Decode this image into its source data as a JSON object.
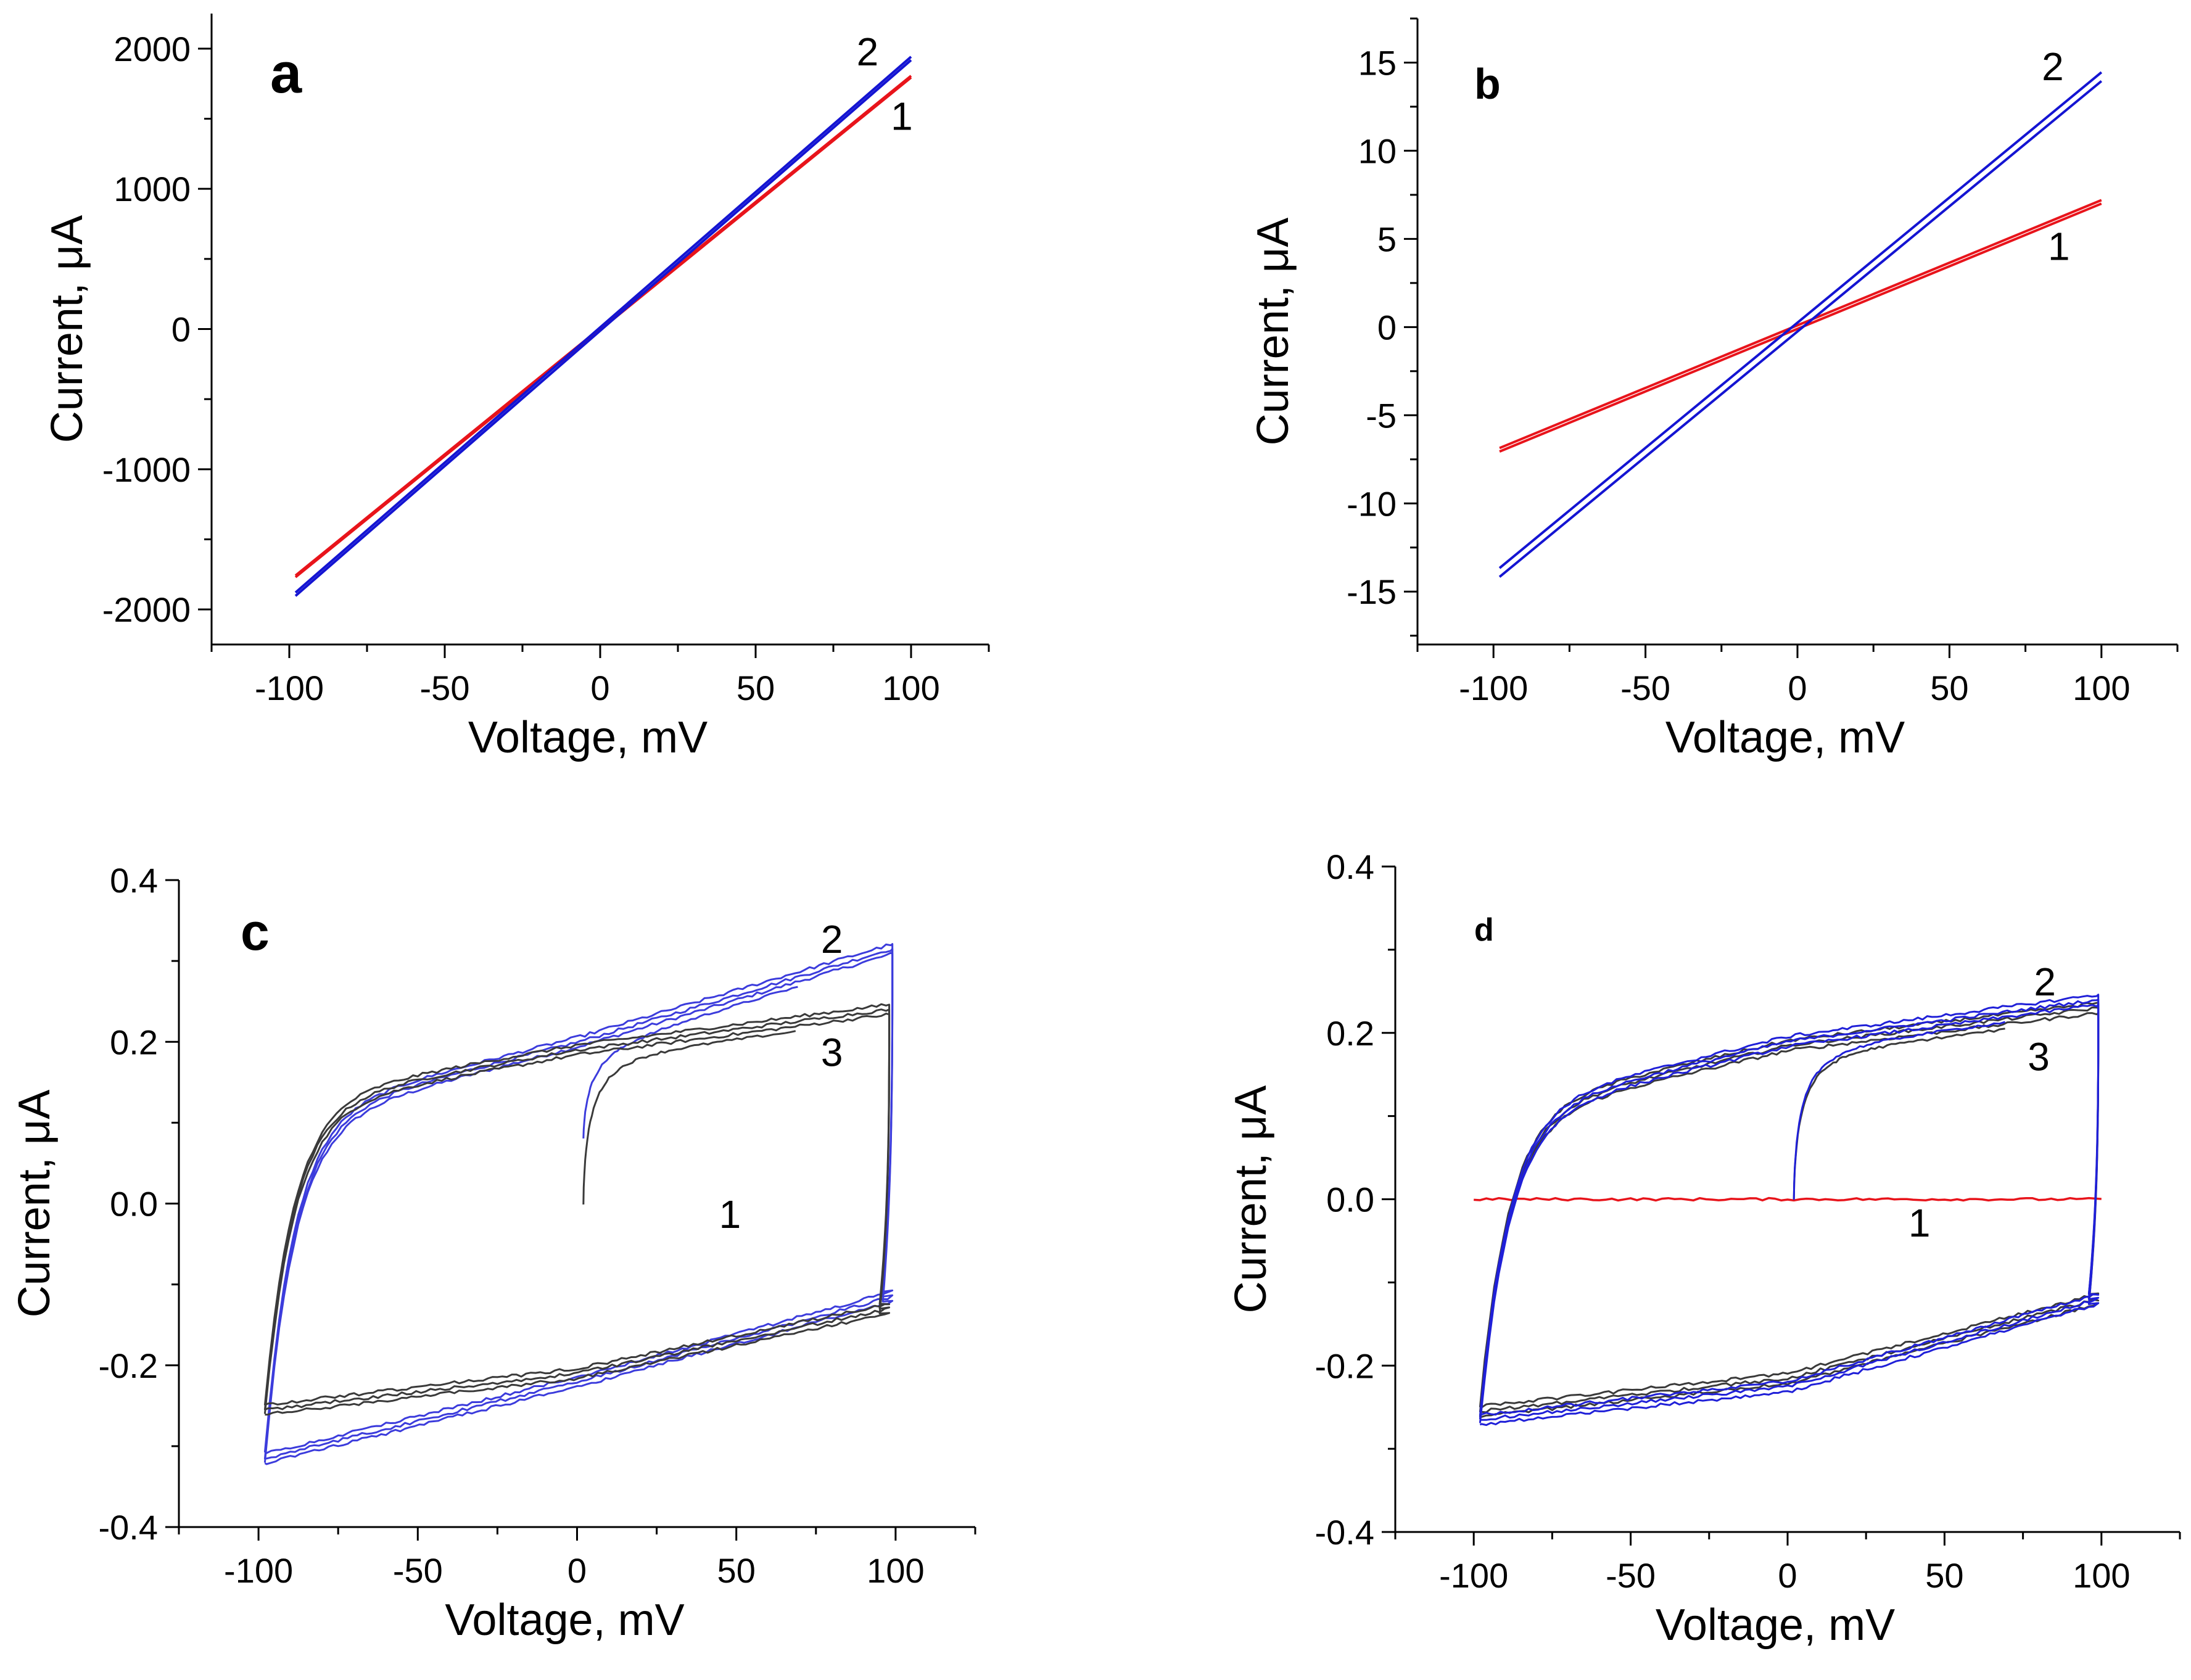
{
  "chart_data": [
    {
      "panel": "a",
      "type": "line",
      "xlabel": "Voltage, mV",
      "ylabel": "Current, μA",
      "xlim": [
        -125,
        125
      ],
      "ylim": [
        -2250,
        2250
      ],
      "xticks": [
        -100,
        -50,
        0,
        50,
        100
      ],
      "yticks": [
        -2000,
        -1000,
        0,
        1000,
        2000
      ],
      "xtick_labels": [
        "-100",
        "-50",
        "0",
        "50",
        "100"
      ],
      "ytick_labels": [
        "-2000",
        "-1000",
        "0",
        "1000",
        "2000"
      ],
      "series": [
        {
          "name": "1",
          "color": "#e8141b",
          "kind": "linear",
          "slope": 18.0,
          "offset": 0,
          "hysteresis": 6
        },
        {
          "name": "2",
          "color": "#1414d2",
          "kind": "linear",
          "slope": 19.3,
          "offset": 0,
          "hysteresis": 12
        }
      ],
      "annotations": [
        {
          "text": "2",
          "x": 86,
          "y": 1880
        },
        {
          "text": "1",
          "x": 97,
          "y": 1420
        }
      ]
    },
    {
      "panel": "b",
      "type": "line",
      "xlabel": "Voltage, mV",
      "ylabel": "Current, μA",
      "xlim": [
        -125,
        125
      ],
      "ylim": [
        -18,
        17.5
      ],
      "xticks": [
        -100,
        -50,
        0,
        50,
        100
      ],
      "yticks": [
        -15,
        -10,
        -5,
        0,
        5,
        10,
        15
      ],
      "xtick_labels": [
        "-100",
        "-50",
        "0",
        "50",
        "100"
      ],
      "ytick_labels": [
        "-15",
        "-10",
        "-5",
        "0",
        "5",
        "10",
        "15"
      ],
      "series": [
        {
          "name": "1",
          "color": "#e8141b",
          "kind": "linear",
          "slope": 0.071,
          "offset": 0,
          "hysteresis": 0.1
        },
        {
          "name": "2",
          "color": "#1414d2",
          "kind": "linear",
          "slope": 0.142,
          "offset": 0,
          "hysteresis": 0.25
        }
      ],
      "annotations": [
        {
          "text": "2",
          "x": 84,
          "y": 14
        },
        {
          "text": "1",
          "x": 86,
          "y": 3.8
        }
      ]
    },
    {
      "panel": "c",
      "type": "line",
      "xlabel": "Voltage, mV",
      "ylabel": "Current, μA",
      "xlim": [
        -125,
        125
      ],
      "ylim": [
        -0.4,
        0.4
      ],
      "xticks": [
        -100,
        -50,
        0,
        50,
        100
      ],
      "yticks": [
        -0.4,
        -0.2,
        0.0,
        0.2,
        0.4
      ],
      "xtick_labels": [
        "-100",
        "-50",
        "0",
        "50",
        "100"
      ],
      "ytick_labels": [
        "-0.4",
        "-0.2",
        "0.0",
        "0.2",
        "0.4"
      ],
      "series": [
        {
          "name": "2",
          "color": "#3c3cdc",
          "kind": "loop",
          "x_left": -98,
          "x_right": 99,
          "top_left": 0.1,
          "top_mid": 0.2,
          "top_right": 0.315,
          "bottom_left": -0.315,
          "bottom_mid": -0.22,
          "bottom_right": -0.115,
          "start_x": 2,
          "start_y": 0.08
        },
        {
          "name": "3",
          "color": "#3a3a3a",
          "kind": "loop",
          "x_left": -98,
          "x_right": 98,
          "top_left": 0.12,
          "top_mid": 0.19,
          "top_right": 0.24,
          "bottom_left": -0.255,
          "bottom_mid": -0.21,
          "bottom_right": -0.13,
          "start_x": 2,
          "start_y": 0.0
        }
      ],
      "annotations": [
        {
          "text": "2",
          "x": 80,
          "y": 0.31
        },
        {
          "text": "3",
          "x": 80,
          "y": 0.17
        },
        {
          "text": "1",
          "x": 48,
          "y": -0.03
        }
      ]
    },
    {
      "panel": "d",
      "type": "line",
      "xlabel": "Voltage, mV",
      "ylabel": "Current, μA",
      "xlim": [
        -125,
        125
      ],
      "ylim": [
        -0.4,
        0.4
      ],
      "xticks": [
        -100,
        -50,
        0,
        50,
        100
      ],
      "yticks": [
        -0.4,
        -0.2,
        0.0,
        0.2,
        0.4
      ],
      "xtick_labels": [
        "-100",
        "-50",
        "0",
        "50",
        "100"
      ],
      "ytick_labels": [
        "-0.4",
        "-0.2",
        "0.0",
        "0.2",
        "0.4"
      ],
      "series": [
        {
          "name": "1",
          "color": "#e8141b",
          "kind": "flat",
          "value": 0.0,
          "x_from": -100,
          "x_to": 100
        },
        {
          "name": "3",
          "color": "#3a3a3a",
          "kind": "loop",
          "x_left": -98,
          "x_right": 99,
          "top_left": 0.1,
          "top_mid": 0.185,
          "top_right": 0.23,
          "bottom_left": -0.255,
          "bottom_mid": -0.215,
          "bottom_right": -0.12,
          "start_x": 2,
          "start_y": 0.0
        },
        {
          "name": "2",
          "color": "#2020d8",
          "kind": "loop",
          "x_left": -98,
          "x_right": 99,
          "top_left": 0.1,
          "top_mid": 0.19,
          "top_right": 0.24,
          "bottom_left": -0.265,
          "bottom_mid": -0.225,
          "bottom_right": -0.12,
          "start_x": 2,
          "start_y": 0.0
        }
      ],
      "annotations": [
        {
          "text": "2",
          "x": 82,
          "y": 0.245
        },
        {
          "text": "3",
          "x": 80,
          "y": 0.155
        },
        {
          "text": "1",
          "x": 42,
          "y": -0.045
        }
      ]
    }
  ]
}
